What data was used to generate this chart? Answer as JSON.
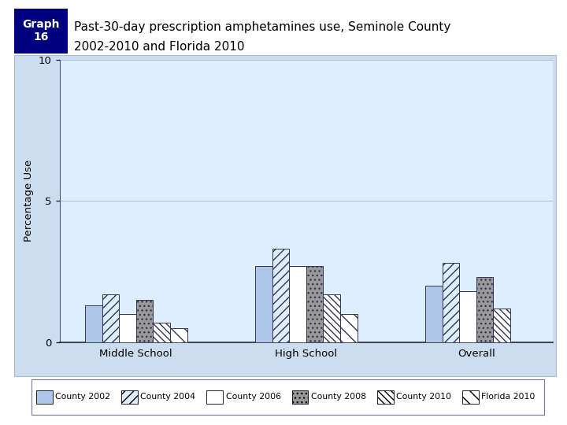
{
  "title_line1": "Past-30-day prescription amphetamines use, Seminole County",
  "title_line2": "2002-2010 and Florida 2010",
  "graph_label": "Graph\n16",
  "ylabel": "Percentage Use",
  "ylim": [
    0,
    10
  ],
  "yticks": [
    0,
    5,
    10
  ],
  "categories": [
    "Middle School",
    "High School",
    "Overall"
  ],
  "series": [
    {
      "label": "County 2002",
      "values": [
        1.3,
        2.7,
        2.0
      ],
      "color": "#aec6e8",
      "hatch": ""
    },
    {
      "label": "County 2004",
      "values": [
        1.7,
        3.3,
        2.8
      ],
      "color": "#ddeeff",
      "hatch": "///"
    },
    {
      "label": "County 2006",
      "values": [
        1.0,
        2.7,
        1.8
      ],
      "color": "white",
      "hatch": ""
    },
    {
      "label": "County 2008",
      "values": [
        1.5,
        2.7,
        2.3
      ],
      "color": "#999999",
      "hatch": "..."
    },
    {
      "label": "County 2010",
      "values": [
        0.7,
        1.7,
        1.2
      ],
      "color": "white",
      "hatch": "\\\\\\\\"
    },
    {
      "label": "Florida 2010",
      "values": [
        0.5,
        1.0,
        0.0
      ],
      "color": "white",
      "hatch": "\\\\"
    }
  ],
  "plot_bg": "#ddeeff",
  "outer_bg": "#ccddf0",
  "fig_bg": "#ffffff",
  "header_bg": "#000080",
  "header_text": "#ffffff",
  "bar_edge_color": "#333355",
  "legend_border": "#777799",
  "grid_color": "#aabbcc"
}
